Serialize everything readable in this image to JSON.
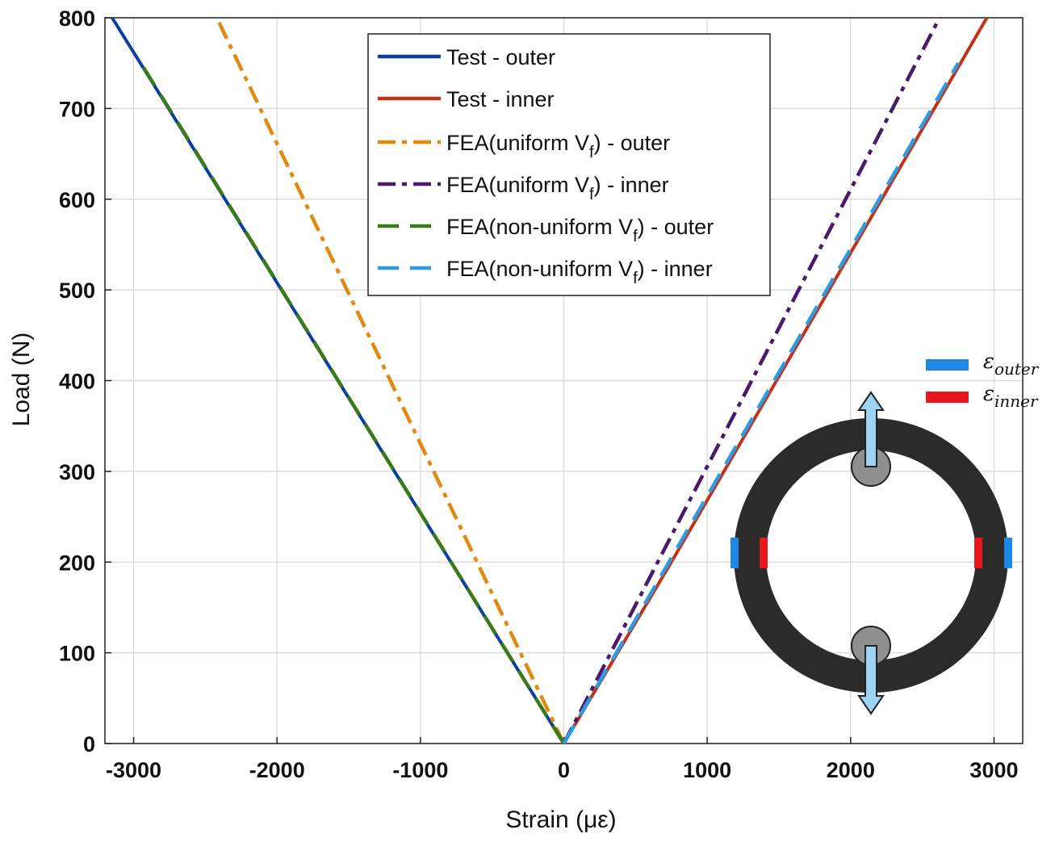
{
  "chart_data": {
    "type": "line",
    "title": "",
    "xlabel": "Strain (με)",
    "ylabel": "Load (N)",
    "xlim": [
      -3200,
      3200
    ],
    "ylim": [
      0,
      800
    ],
    "xticks": [
      -3000,
      -2000,
      -1000,
      0,
      1000,
      2000,
      3000
    ],
    "yticks": [
      0,
      100,
      200,
      300,
      400,
      500,
      600,
      700,
      800
    ],
    "grid": true,
    "legend_position": "top-center",
    "series": [
      {
        "name": "Test - outer",
        "label_main": "Test - outer",
        "color": "#0b3f9e",
        "style": "solid",
        "x": [
          0,
          -3150
        ],
        "y": [
          0,
          800
        ]
      },
      {
        "name": "Test - inner",
        "label_main": "Test - inner",
        "color": "#c0321a",
        "style": "solid",
        "x": [
          0,
          750,
          2950
        ],
        "y": [
          0,
          200,
          800
        ]
      },
      {
        "name": "FEA(uniform Vf) - outer",
        "label_main": "FEA(uniform V",
        "label_sub": "f",
        "label_post": ") - outer",
        "color": "#e08a12",
        "style": "dashdot",
        "x": [
          0,
          -2420
        ],
        "y": [
          0,
          800
        ]
      },
      {
        "name": "FEA(uniform Vf) - inner",
        "label_main": "FEA(uniform V",
        "label_sub": "f",
        "label_post": ") - inner",
        "color": "#4a1a6b",
        "style": "dashdot",
        "x": [
          0,
          2620
        ],
        "y": [
          0,
          800
        ]
      },
      {
        "name": "FEA(non-uniform Vf) - outer",
        "label_main": "FEA(non-uniform V",
        "label_sub": "f",
        "label_post": ") - outer",
        "color": "#3a7a1a",
        "style": "dashed",
        "x": [
          0,
          -2950
        ],
        "y": [
          0,
          750
        ]
      },
      {
        "name": "FEA(non-uniform Vf) - inner",
        "label_main": "FEA(non-uniform V",
        "label_sub": "f",
        "label_post": ") - inner",
        "color": "#2f9ae0",
        "style": "dashed",
        "x": [
          0,
          2750
        ],
        "y": [
          0,
          750
        ]
      }
    ],
    "inset": {
      "legend": [
        {
          "label_main": "ε",
          "label_sub": "outer",
          "color": "#1e88e5"
        },
        {
          "label_main": "ε",
          "label_sub": "inner",
          "color": "#e8171c"
        }
      ],
      "ring_color": "#2b2b2b",
      "pin_color": "#8f8f8f",
      "arrow_color": "#9fd3f3"
    }
  }
}
